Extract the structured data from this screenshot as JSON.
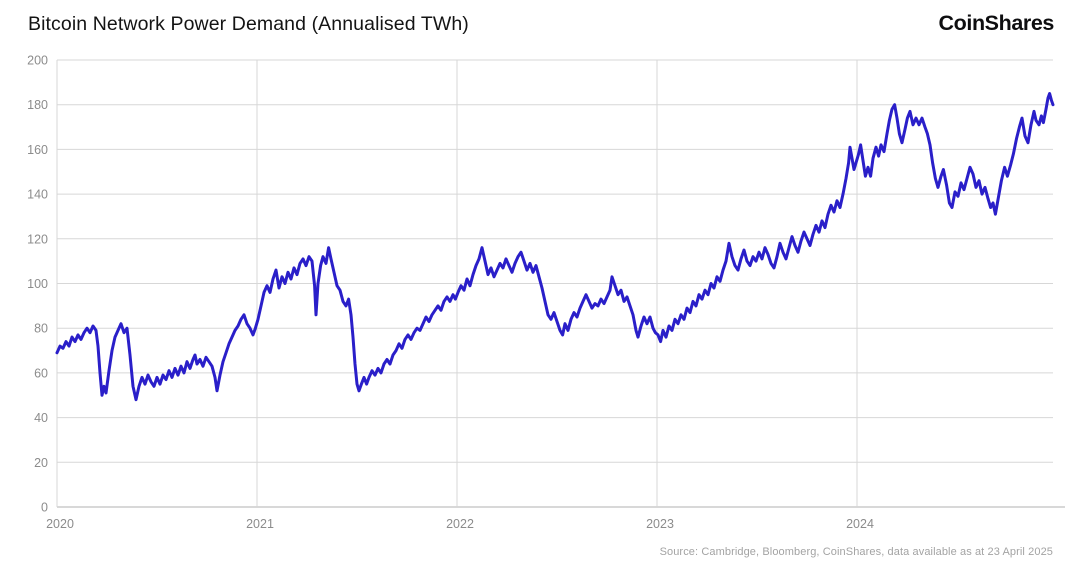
{
  "header": {
    "title": "Bitcoin Network Power Demand (Annualised TWh)",
    "logo": "CoinShares"
  },
  "footer": {
    "source": "Source: Cambridge, Bloomberg, CoinShares, data available as at 23 April 2025"
  },
  "colors": {
    "line": "#2a1fc9",
    "grid": "#d7d7d7",
    "axis": "#b0b0b0",
    "tick_label": "#8c8c8c",
    "title": "#141414",
    "source": "#a3a3a3"
  },
  "chart_data": {
    "type": "line",
    "title": "Bitcoin Network Power Demand (Annualised TWh)",
    "series_name": "Bitcoin network power demand (annualised TWh)",
    "xlabel": "",
    "ylabel": "",
    "x_ticks": [
      2020,
      2021,
      2022,
      2023,
      2024
    ],
    "y_ticks": [
      0,
      20,
      40,
      60,
      80,
      100,
      120,
      140,
      160,
      180,
      200
    ],
    "xlim": [
      2020,
      2024.98
    ],
    "ylim": [
      0,
      200
    ],
    "grid": true,
    "legend": false,
    "points": [
      [
        2020.0,
        69
      ],
      [
        2020.015,
        72
      ],
      [
        2020.03,
        71
      ],
      [
        2020.045,
        74
      ],
      [
        2020.06,
        72
      ],
      [
        2020.075,
        76
      ],
      [
        2020.09,
        74
      ],
      [
        2020.105,
        77
      ],
      [
        2020.12,
        75
      ],
      [
        2020.135,
        78
      ],
      [
        2020.15,
        80
      ],
      [
        2020.165,
        78
      ],
      [
        2020.18,
        81
      ],
      [
        2020.195,
        79
      ],
      [
        2020.205,
        72
      ],
      [
        2020.215,
        60
      ],
      [
        2020.225,
        50
      ],
      [
        2020.235,
        54
      ],
      [
        2020.245,
        51
      ],
      [
        2020.26,
        61
      ],
      [
        2020.275,
        70
      ],
      [
        2020.29,
        76
      ],
      [
        2020.305,
        79
      ],
      [
        2020.32,
        82
      ],
      [
        2020.335,
        78
      ],
      [
        2020.35,
        80
      ],
      [
        2020.365,
        68
      ],
      [
        2020.38,
        54
      ],
      [
        2020.395,
        48
      ],
      [
        2020.41,
        54
      ],
      [
        2020.425,
        58
      ],
      [
        2020.44,
        55
      ],
      [
        2020.455,
        59
      ],
      [
        2020.47,
        56
      ],
      [
        2020.485,
        54
      ],
      [
        2020.5,
        58
      ],
      [
        2020.515,
        55
      ],
      [
        2020.53,
        59
      ],
      [
        2020.545,
        57
      ],
      [
        2020.56,
        61
      ],
      [
        2020.575,
        58
      ],
      [
        2020.59,
        62
      ],
      [
        2020.605,
        59
      ],
      [
        2020.62,
        63
      ],
      [
        2020.635,
        60
      ],
      [
        2020.65,
        65
      ],
      [
        2020.665,
        62
      ],
      [
        2020.68,
        66
      ],
      [
        2020.69,
        68
      ],
      [
        2020.7,
        64
      ],
      [
        2020.715,
        66
      ],
      [
        2020.73,
        63
      ],
      [
        2020.745,
        67
      ],
      [
        2020.76,
        65
      ],
      [
        2020.775,
        63
      ],
      [
        2020.79,
        58
      ],
      [
        2020.8,
        52
      ],
      [
        2020.815,
        59
      ],
      [
        2020.83,
        65
      ],
      [
        2020.845,
        69
      ],
      [
        2020.86,
        73
      ],
      [
        2020.875,
        76
      ],
      [
        2020.89,
        79
      ],
      [
        2020.905,
        81
      ],
      [
        2020.92,
        84
      ],
      [
        2020.935,
        86
      ],
      [
        2020.95,
        82
      ],
      [
        2020.965,
        80
      ],
      [
        2020.98,
        77
      ],
      [
        2020.992,
        80
      ],
      [
        2021.005,
        84
      ],
      [
        2021.02,
        90
      ],
      [
        2021.035,
        96
      ],
      [
        2021.05,
        99
      ],
      [
        2021.065,
        96
      ],
      [
        2021.08,
        102
      ],
      [
        2021.095,
        106
      ],
      [
        2021.11,
        98
      ],
      [
        2021.125,
        103
      ],
      [
        2021.14,
        100
      ],
      [
        2021.155,
        105
      ],
      [
        2021.17,
        102
      ],
      [
        2021.185,
        107
      ],
      [
        2021.2,
        104
      ],
      [
        2021.215,
        109
      ],
      [
        2021.23,
        111
      ],
      [
        2021.245,
        108
      ],
      [
        2021.26,
        112
      ],
      [
        2021.275,
        110
      ],
      [
        2021.288,
        99
      ],
      [
        2021.295,
        86
      ],
      [
        2021.305,
        100
      ],
      [
        2021.318,
        108
      ],
      [
        2021.33,
        112
      ],
      [
        2021.345,
        109
      ],
      [
        2021.358,
        116
      ],
      [
        2021.37,
        111
      ],
      [
        2021.385,
        105
      ],
      [
        2021.4,
        99
      ],
      [
        2021.415,
        97
      ],
      [
        2021.43,
        92
      ],
      [
        2021.445,
        90
      ],
      [
        2021.458,
        93
      ],
      [
        2021.47,
        86
      ],
      [
        2021.48,
        76
      ],
      [
        2021.49,
        64
      ],
      [
        2021.5,
        55
      ],
      [
        2021.51,
        52
      ],
      [
        2021.522,
        55
      ],
      [
        2021.535,
        58
      ],
      [
        2021.548,
        55
      ],
      [
        2021.56,
        58
      ],
      [
        2021.575,
        61
      ],
      [
        2021.59,
        59
      ],
      [
        2021.605,
        62
      ],
      [
        2021.62,
        60
      ],
      [
        2021.635,
        64
      ],
      [
        2021.65,
        66
      ],
      [
        2021.665,
        64
      ],
      [
        2021.68,
        68
      ],
      [
        2021.695,
        70
      ],
      [
        2021.71,
        73
      ],
      [
        2021.725,
        71
      ],
      [
        2021.74,
        75
      ],
      [
        2021.755,
        77
      ],
      [
        2021.77,
        75
      ],
      [
        2021.785,
        78
      ],
      [
        2021.8,
        80
      ],
      [
        2021.815,
        79
      ],
      [
        2021.83,
        82
      ],
      [
        2021.845,
        85
      ],
      [
        2021.86,
        83
      ],
      [
        2021.875,
        86
      ],
      [
        2021.89,
        88
      ],
      [
        2021.905,
        90
      ],
      [
        2021.92,
        88
      ],
      [
        2021.935,
        92
      ],
      [
        2021.95,
        94
      ],
      [
        2021.965,
        92
      ],
      [
        2021.98,
        95
      ],
      [
        2021.992,
        93
      ],
      [
        2022.005,
        96
      ],
      [
        2022.02,
        99
      ],
      [
        2022.035,
        97
      ],
      [
        2022.05,
        102
      ],
      [
        2022.065,
        99
      ],
      [
        2022.08,
        104
      ],
      [
        2022.095,
        108
      ],
      [
        2022.11,
        111
      ],
      [
        2022.125,
        116
      ],
      [
        2022.14,
        110
      ],
      [
        2022.155,
        104
      ],
      [
        2022.17,
        107
      ],
      [
        2022.185,
        103
      ],
      [
        2022.2,
        106
      ],
      [
        2022.215,
        109
      ],
      [
        2022.23,
        107
      ],
      [
        2022.245,
        111
      ],
      [
        2022.26,
        108
      ],
      [
        2022.275,
        105
      ],
      [
        2022.29,
        109
      ],
      [
        2022.305,
        112
      ],
      [
        2022.32,
        114
      ],
      [
        2022.335,
        110
      ],
      [
        2022.35,
        106
      ],
      [
        2022.365,
        109
      ],
      [
        2022.38,
        105
      ],
      [
        2022.395,
        108
      ],
      [
        2022.41,
        103
      ],
      [
        2022.425,
        98
      ],
      [
        2022.44,
        92
      ],
      [
        2022.455,
        86
      ],
      [
        2022.47,
        84
      ],
      [
        2022.485,
        87
      ],
      [
        2022.5,
        83
      ],
      [
        2022.515,
        79
      ],
      [
        2022.528,
        77
      ],
      [
        2022.54,
        82
      ],
      [
        2022.555,
        79
      ],
      [
        2022.57,
        84
      ],
      [
        2022.585,
        87
      ],
      [
        2022.6,
        85
      ],
      [
        2022.615,
        89
      ],
      [
        2022.63,
        92
      ],
      [
        2022.645,
        95
      ],
      [
        2022.66,
        92
      ],
      [
        2022.675,
        89
      ],
      [
        2022.69,
        91
      ],
      [
        2022.705,
        90
      ],
      [
        2022.72,
        93
      ],
      [
        2022.735,
        91
      ],
      [
        2022.75,
        94
      ],
      [
        2022.765,
        97
      ],
      [
        2022.775,
        103
      ],
      [
        2022.79,
        99
      ],
      [
        2022.805,
        95
      ],
      [
        2022.82,
        97
      ],
      [
        2022.835,
        92
      ],
      [
        2022.85,
        94
      ],
      [
        2022.865,
        90
      ],
      [
        2022.88,
        86
      ],
      [
        2022.895,
        79
      ],
      [
        2022.905,
        76
      ],
      [
        2022.92,
        81
      ],
      [
        2022.935,
        85
      ],
      [
        2022.95,
        82
      ],
      [
        2022.965,
        85
      ],
      [
        2022.98,
        80
      ],
      [
        2022.992,
        78
      ],
      [
        2023.005,
        77
      ],
      [
        2023.018,
        74
      ],
      [
        2023.03,
        79
      ],
      [
        2023.045,
        76
      ],
      [
        2023.06,
        81
      ],
      [
        2023.075,
        79
      ],
      [
        2023.09,
        84
      ],
      [
        2023.105,
        82
      ],
      [
        2023.12,
        86
      ],
      [
        2023.135,
        84
      ],
      [
        2023.15,
        89
      ],
      [
        2023.165,
        87
      ],
      [
        2023.18,
        92
      ],
      [
        2023.195,
        90
      ],
      [
        2023.21,
        95
      ],
      [
        2023.225,
        93
      ],
      [
        2023.24,
        97
      ],
      [
        2023.255,
        95
      ],
      [
        2023.27,
        100
      ],
      [
        2023.285,
        98
      ],
      [
        2023.3,
        103
      ],
      [
        2023.315,
        101
      ],
      [
        2023.33,
        106
      ],
      [
        2023.345,
        110
      ],
      [
        2023.36,
        118
      ],
      [
        2023.375,
        112
      ],
      [
        2023.39,
        108
      ],
      [
        2023.405,
        106
      ],
      [
        2023.42,
        111
      ],
      [
        2023.435,
        115
      ],
      [
        2023.45,
        110
      ],
      [
        2023.465,
        108
      ],
      [
        2023.48,
        112
      ],
      [
        2023.495,
        110
      ],
      [
        2023.51,
        114
      ],
      [
        2023.525,
        111
      ],
      [
        2023.54,
        116
      ],
      [
        2023.555,
        113
      ],
      [
        2023.57,
        109
      ],
      [
        2023.585,
        107
      ],
      [
        2023.6,
        112
      ],
      [
        2023.615,
        118
      ],
      [
        2023.63,
        114
      ],
      [
        2023.645,
        111
      ],
      [
        2023.66,
        116
      ],
      [
        2023.675,
        121
      ],
      [
        2023.69,
        117
      ],
      [
        2023.705,
        114
      ],
      [
        2023.72,
        119
      ],
      [
        2023.735,
        123
      ],
      [
        2023.75,
        120
      ],
      [
        2023.765,
        117
      ],
      [
        2023.78,
        122
      ],
      [
        2023.795,
        126
      ],
      [
        2023.81,
        123
      ],
      [
        2023.825,
        128
      ],
      [
        2023.84,
        125
      ],
      [
        2023.855,
        131
      ],
      [
        2023.87,
        135
      ],
      [
        2023.885,
        132
      ],
      [
        2023.9,
        137
      ],
      [
        2023.915,
        134
      ],
      [
        2023.93,
        140
      ],
      [
        2023.945,
        147
      ],
      [
        2023.958,
        154
      ],
      [
        2023.965,
        161
      ],
      [
        2023.975,
        156
      ],
      [
        2023.985,
        151
      ],
      [
        2023.995,
        154
      ],
      [
        2024.008,
        158
      ],
      [
        2024.018,
        162
      ],
      [
        2024.03,
        155
      ],
      [
        2024.042,
        148
      ],
      [
        2024.055,
        152
      ],
      [
        2024.068,
        148
      ],
      [
        2024.08,
        156
      ],
      [
        2024.095,
        161
      ],
      [
        2024.108,
        157
      ],
      [
        2024.12,
        162
      ],
      [
        2024.135,
        159
      ],
      [
        2024.15,
        167
      ],
      [
        2024.162,
        173
      ],
      [
        2024.175,
        178
      ],
      [
        2024.188,
        180
      ],
      [
        2024.2,
        174
      ],
      [
        2024.212,
        167
      ],
      [
        2024.225,
        163
      ],
      [
        2024.24,
        169
      ],
      [
        2024.252,
        174
      ],
      [
        2024.265,
        177
      ],
      [
        2024.28,
        171
      ],
      [
        2024.295,
        174
      ],
      [
        2024.31,
        171
      ],
      [
        2024.325,
        174
      ],
      [
        2024.34,
        170
      ],
      [
        2024.352,
        167
      ],
      [
        2024.365,
        162
      ],
      [
        2024.378,
        154
      ],
      [
        2024.392,
        147
      ],
      [
        2024.405,
        143
      ],
      [
        2024.42,
        148
      ],
      [
        2024.432,
        151
      ],
      [
        2024.448,
        144
      ],
      [
        2024.462,
        136
      ],
      [
        2024.475,
        134
      ],
      [
        2024.49,
        141
      ],
      [
        2024.505,
        139
      ],
      [
        2024.52,
        145
      ],
      [
        2024.535,
        142
      ],
      [
        2024.55,
        147
      ],
      [
        2024.565,
        152
      ],
      [
        2024.58,
        149
      ],
      [
        2024.595,
        143
      ],
      [
        2024.61,
        146
      ],
      [
        2024.625,
        140
      ],
      [
        2024.64,
        143
      ],
      [
        2024.655,
        138
      ],
      [
        2024.668,
        134
      ],
      [
        2024.68,
        136
      ],
      [
        2024.692,
        131
      ],
      [
        2024.708,
        139
      ],
      [
        2024.722,
        146
      ],
      [
        2024.738,
        152
      ],
      [
        2024.752,
        148
      ],
      [
        2024.768,
        153
      ],
      [
        2024.782,
        158
      ],
      [
        2024.798,
        165
      ],
      [
        2024.812,
        170
      ],
      [
        2024.825,
        174
      ],
      [
        2024.84,
        166
      ],
      [
        2024.855,
        163
      ],
      [
        2024.87,
        171
      ],
      [
        2024.885,
        177
      ],
      [
        2024.895,
        173
      ],
      [
        2024.91,
        171
      ],
      [
        2024.922,
        175
      ],
      [
        2024.932,
        172
      ],
      [
        2024.945,
        178
      ],
      [
        2024.955,
        183
      ],
      [
        2024.963,
        185
      ],
      [
        2024.972,
        182
      ],
      [
        2024.98,
        180
      ]
    ]
  }
}
